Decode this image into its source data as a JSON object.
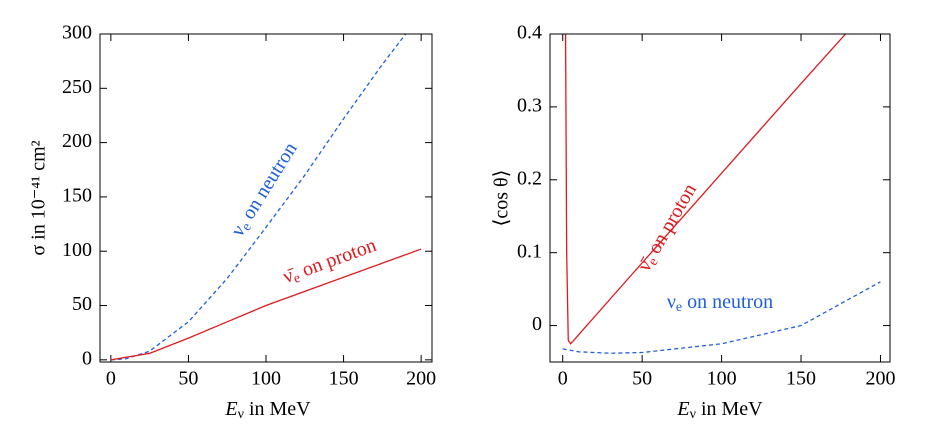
{
  "chart_data": [
    {
      "type": "line",
      "xlabel": [
        "E",
        "ν",
        " in MeV"
      ],
      "ylabel": "σ in 10⁻⁴¹ cm²",
      "xlim": [
        -7,
        207
      ],
      "ylim": [
        -2,
        300
      ],
      "xticks": [
        0,
        50,
        100,
        150,
        200
      ],
      "yticks": [
        0,
        50,
        100,
        150,
        200,
        250,
        300
      ],
      "series": [
        {
          "color": "#1f5fdc",
          "dashed": true,
          "x": [
            0,
            10,
            25,
            50,
            75,
            100,
            125,
            150,
            175,
            190
          ],
          "values": [
            0,
            1,
            8,
            35,
            75,
            122,
            170,
            222,
            272,
            300
          ]
        },
        {
          "color": "#e0191e",
          "dashed": false,
          "x": [
            0,
            25,
            50,
            75,
            100,
            125,
            150,
            175,
            200
          ],
          "values": [
            0,
            6,
            20,
            35,
            50,
            63,
            76,
            89,
            102
          ]
        }
      ],
      "annotations": [
        {
          "parts": [
            "ν",
            "e",
            " on neutron"
          ],
          "color": "#1f5fdc"
        },
        {
          "parts": [
            "ν̄",
            "e",
            " on proton"
          ],
          "color": "#e0191e"
        }
      ]
    },
    {
      "type": "line",
      "xlabel": [
        "E",
        "ν",
        " in MeV"
      ],
      "ylabel": "⟨cos θ⟩",
      "xlim": [
        -8,
        206
      ],
      "ylim": [
        -0.05,
        0.4
      ],
      "xticks": [
        0,
        50,
        100,
        150,
        200
      ],
      "yticks": [
        0,
        0.1,
        0.2,
        0.3,
        0.4
      ],
      "series": [
        {
          "color": "#e0191e",
          "dashed": false,
          "x": [
            1.8,
            2.5,
            3.5,
            5,
            50,
            100,
            150,
            178
          ],
          "values": [
            0.4,
            0.1,
            -0.02,
            -0.025,
            0.086,
            0.209,
            0.332,
            0.4
          ]
        },
        {
          "color": "#1f5fdc",
          "dashed": true,
          "x": [
            0,
            10,
            30,
            50,
            100,
            150,
            200
          ],
          "values": [
            -0.032,
            -0.036,
            -0.038,
            -0.037,
            -0.025,
            0,
            0.06
          ]
        }
      ],
      "annotations": [
        {
          "parts": [
            "ν̄",
            "e",
            " on proton"
          ],
          "color": "#e0191e"
        },
        {
          "parts": [
            "ν",
            "e",
            " on neutron"
          ],
          "color": "#1f5fdc"
        }
      ]
    }
  ]
}
